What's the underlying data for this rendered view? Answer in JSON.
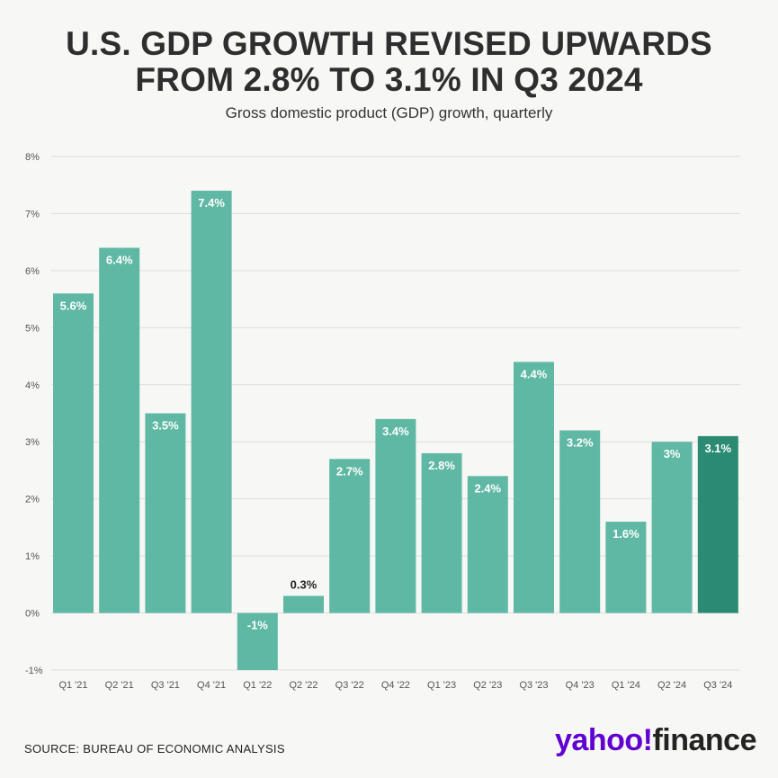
{
  "header": {
    "title_line1": "U.S. GDP GROWTH REVISED UPWARDS",
    "title_line2": "FROM 2.8% TO 3.1% IN Q3 2024",
    "subtitle": "Gross domestic product (GDP) growth, quarterly"
  },
  "footer": {
    "source": "SOURCE: BUREAU OF ECONOMIC ANALYSIS",
    "brand_yahoo": "yahoo!",
    "brand_finance": "finance"
  },
  "colors": {
    "bar": "#5fb8a3",
    "bar_highlight": "#2a8a72",
    "grid": "#dedede",
    "label_inside": "#ffffff",
    "label_outside": "#222222",
    "axis_text": "#555555"
  },
  "chart_data": {
    "type": "bar",
    "title": "U.S. GDP GROWTH REVISED UPWARDS FROM 2.8% TO 3.1% IN Q3 2024",
    "subtitle": "Gross domestic product (GDP) growth, quarterly",
    "xlabel": "",
    "ylabel": "",
    "categories": [
      "Q1 '21",
      "Q2 '21",
      "Q3 '21",
      "Q4 '21",
      "Q1 '22",
      "Q2 '22",
      "Q3 '22",
      "Q4 '22",
      "Q1 '23",
      "Q2 '23",
      "Q3 '23",
      "Q4 '23",
      "Q1 '24",
      "Q2 '24",
      "Q3 '24"
    ],
    "values": [
      5.6,
      6.4,
      3.5,
      7.4,
      -1,
      0.3,
      2.7,
      3.4,
      2.8,
      2.4,
      4.4,
      3.2,
      1.6,
      3,
      3.1
    ],
    "data_labels": [
      "5.6%",
      "6.4%",
      "3.5%",
      "7.4%",
      "-1%",
      "0.3%",
      "2.7%",
      "3.4%",
      "2.8%",
      "2.4%",
      "4.4%",
      "3.2%",
      "1.6%",
      "3%",
      "3.1%"
    ],
    "highlight_index": 14,
    "ylim": [
      -1,
      8
    ],
    "yticks": [
      -1,
      0,
      1,
      2,
      3,
      4,
      5,
      6,
      7,
      8
    ],
    "ytick_labels": [
      "-1%",
      "0%",
      "1%",
      "2%",
      "3%",
      "4%",
      "5%",
      "6%",
      "7%",
      "8%"
    ],
    "grid": true,
    "legend": "none"
  }
}
